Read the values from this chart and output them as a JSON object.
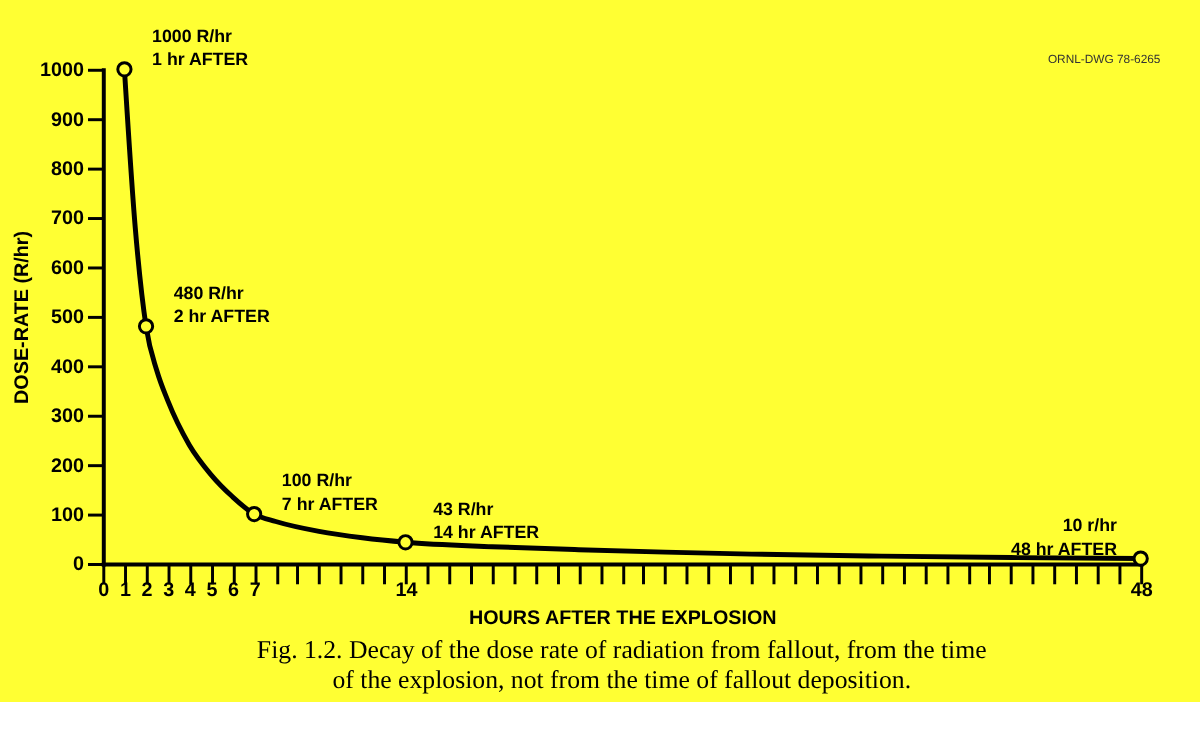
{
  "chart_data": {
    "type": "line",
    "xlabel": "HOURS AFTER THE EXPLOSION",
    "ylabel": "DOSE-RATE (R/hr)",
    "series": [
      {
        "color": "#000000",
        "marker": "none",
        "x": [
          1,
          1.5,
          2,
          2.5,
          3,
          4,
          5,
          6,
          7,
          8,
          10,
          12,
          14,
          18,
          22,
          26,
          30,
          36,
          42,
          48
        ],
        "values": [
          1000,
          680,
          480,
          390,
          330,
          240,
          180,
          135,
          100,
          85,
          65,
          52,
          43,
          34,
          28,
          23,
          19,
          15,
          12,
          10
        ]
      },
      {
        "type": "scatter",
        "color": "#000000",
        "marker": "circle",
        "x": [
          1,
          2,
          7,
          14,
          48
        ],
        "values": [
          1000,
          480,
          100,
          43,
          10
        ]
      }
    ],
    "xlim": [
      0,
      48
    ],
    "ylim": [
      0,
      1000
    ],
    "xticks": [
      0,
      1,
      2,
      3,
      4,
      5,
      6,
      7,
      {
        "value": 8,
        "label": null
      },
      {
        "value": 9,
        "label": null
      },
      {
        "value": 10,
        "label": null
      },
      {
        "value": 11,
        "label": null
      },
      {
        "value": 12,
        "label": null
      },
      {
        "value": 13,
        "label": null
      },
      14,
      {
        "value": 15,
        "label": null
      },
      {
        "value": 16,
        "label": null
      },
      {
        "value": 17,
        "label": null
      },
      {
        "value": 18,
        "label": null
      },
      {
        "value": 19,
        "label": null
      },
      {
        "value": 20,
        "label": null
      },
      {
        "value": 21,
        "label": null
      },
      {
        "value": 22,
        "label": null
      },
      {
        "value": 23,
        "label": null
      },
      {
        "value": 24,
        "label": null
      },
      {
        "value": 25,
        "label": null
      },
      {
        "value": 26,
        "label": null
      },
      {
        "value": 27,
        "label": null
      },
      {
        "value": 28,
        "label": null
      },
      {
        "value": 29,
        "label": null
      },
      {
        "value": 30,
        "label": null
      },
      {
        "value": 31,
        "label": null
      },
      {
        "value": 32,
        "label": null
      },
      {
        "value": 33,
        "label": null
      },
      {
        "value": 34,
        "label": null
      },
      {
        "value": 35,
        "label": null
      },
      {
        "value": 36,
        "label": null
      },
      {
        "value": 37,
        "label": null
      },
      {
        "value": 38,
        "label": null
      },
      {
        "value": 39,
        "label": null
      },
      {
        "value": 40,
        "label": null
      },
      {
        "value": 41,
        "label": null
      },
      {
        "value": 42,
        "label": null
      },
      {
        "value": 43,
        "label": null
      },
      {
        "value": 44,
        "label": null
      },
      {
        "value": 45,
        "label": null
      },
      {
        "value": 46,
        "label": null
      },
      {
        "value": 47,
        "label": null
      },
      48
    ],
    "yticks": [
      0,
      100,
      200,
      300,
      400,
      500,
      600,
      700,
      800,
      900,
      1000
    ],
    "grid": false,
    "annotations": [
      {
        "text": "1000 R/hr\n1 hr AFTER",
        "x": 1,
        "y": 1000
      },
      {
        "text": "480 R/hr\n2 hr AFTER",
        "x": 2,
        "y": 480
      },
      {
        "text": "100 R/hr\n7 hr AFTER",
        "x": 7,
        "y": 100
      },
      {
        "text": "43 R/hr\n14 hr AFTER",
        "x": 14,
        "y": 43
      },
      {
        "text": "10 r/hr\n48 hr AFTER",
        "x": 48,
        "y": 10
      },
      "ORNL-DWG 78-6265",
      "Fig. 1.2. Decay of the dose rate of radiation from fallout, from the time\nof the explosion, not from the time of fallout deposition."
    ]
  }
}
